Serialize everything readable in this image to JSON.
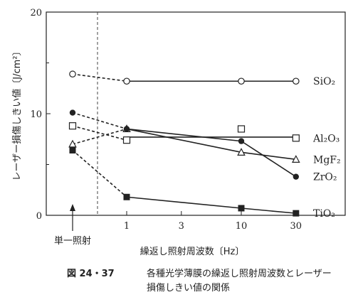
{
  "chart_data": {
    "type": "line",
    "ylabel": "レーザー損傷しきい値〔J/cm²〕",
    "xlabel": "繰返し照射周波数〔Hz〕",
    "ylim": [
      0,
      20
    ],
    "y_ticks": [
      "0",
      "10",
      "20"
    ],
    "x_ticks": [
      "1",
      "3",
      "10",
      "30"
    ],
    "x_scale": "log",
    "single_shot_label": "単一照射",
    "x": [
      "単一照射",
      1,
      10,
      30
    ],
    "series": [
      {
        "name": "SiO₂",
        "marker": "open-circle",
        "values": [
          13.9,
          13.2,
          13.2,
          13.2
        ]
      },
      {
        "name": "Al₂O₃",
        "marker": "open-square",
        "values": [
          8.8,
          7.4,
          8.5,
          7.6
        ]
      },
      {
        "name": "MgF₂",
        "marker": "open-triangle",
        "values": [
          7.0,
          8.5,
          6.2,
          5.5
        ]
      },
      {
        "name": "ZrO₂",
        "marker": "filled-circle",
        "values": [
          10.1,
          8.5,
          7.3,
          3.8
        ]
      },
      {
        "name": "TiO₂",
        "marker": "filled-square",
        "values": [
          6.4,
          1.8,
          0.7,
          0.2
        ]
      }
    ]
  },
  "caption": {
    "figure_number": "図 24・37",
    "line1": "各種光学薄膜の繰返し照射周波数とレーザー",
    "line2": "損傷しきい値の関係"
  }
}
